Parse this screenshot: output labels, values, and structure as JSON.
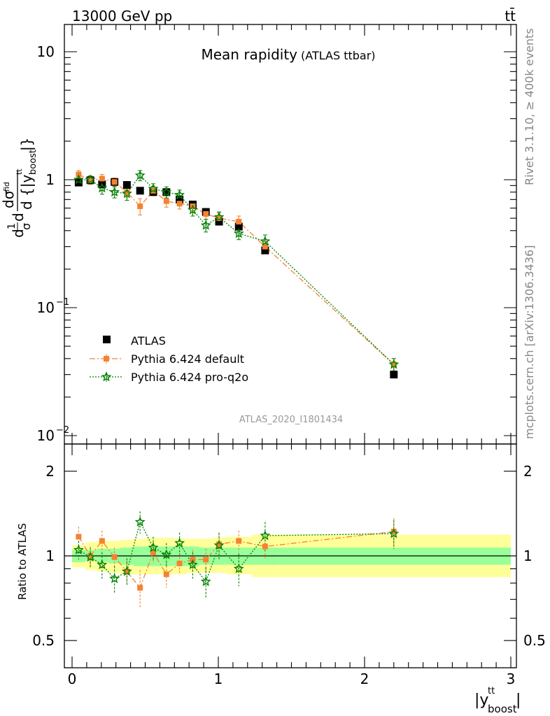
{
  "header": {
    "energy_label": "13000 GeV pp",
    "process_label": "tt̄"
  },
  "side_labels": {
    "rivet": "Rivet 3.1.10, ≥ 400k events",
    "mcplots": "mcplots.cern.ch [arXiv:1306.3436]"
  },
  "colors": {
    "atlas": "#000000",
    "pythia_default": "#f58231",
    "pythia_proq2o": "#008000",
    "band_inner": "#99ff99",
    "band_outer": "#ffff99",
    "ratio_line": "#000000"
  },
  "chart_data": [
    {
      "panel": "main",
      "type": "scatter",
      "title": "Mean rapidity",
      "subtitle": "(ATLAS ttbar)",
      "analysis_id": "ATLAS_2020_I1801434",
      "ylabel": "d 1/σ dσ^{fid} / d {|y^{tt}_{boost}|}",
      "yscale": "log",
      "ylim": [
        0.01,
        20
      ],
      "xlim": [
        -0.07,
        3.05
      ],
      "yticks": [
        {
          "value": 10,
          "base": "10",
          "exp": ""
        },
        {
          "value": 1,
          "base": "1",
          "exp": ""
        },
        {
          "value": 0.1,
          "base": "10",
          "exp": "−1"
        },
        {
          "value": 0.01,
          "base": "10",
          "exp": "−2"
        }
      ],
      "legend_placement": "lower-left",
      "x": [
        0.045,
        0.125,
        0.205,
        0.29,
        0.375,
        0.465,
        0.555,
        0.645,
        0.735,
        0.825,
        0.915,
        1.005,
        1.14,
        1.32,
        2.2
      ],
      "series": [
        {
          "name": "ATLAS",
          "marker": "square",
          "values": [
            0.95,
            0.99,
            0.92,
            0.96,
            0.91,
            0.82,
            0.8,
            0.8,
            0.7,
            0.64,
            0.56,
            0.47,
            0.43,
            0.28,
            0.03
          ],
          "yerr": [
            0.03,
            0.03,
            0.03,
            0.03,
            0.03,
            0.03,
            0.03,
            0.03,
            0.02,
            0.02,
            0.02,
            0.02,
            0.02,
            0.01,
            0.002
          ]
        },
        {
          "name": "Pythia 6.424 default",
          "marker": "square",
          "line": "dashdot",
          "values": [
            1.1,
            0.99,
            1.02,
            0.96,
            0.8,
            0.62,
            0.82,
            0.68,
            0.65,
            0.62,
            0.54,
            0.5,
            0.47,
            0.3,
            0.036
          ],
          "yerr": [
            0.08,
            0.07,
            0.08,
            0.07,
            0.07,
            0.09,
            0.07,
            0.07,
            0.06,
            0.05,
            0.05,
            0.05,
            0.05,
            0.03,
            0.004
          ]
        },
        {
          "name": "Pythia 6.424 pro-q2o",
          "marker": "star",
          "line": "dotted",
          "values": [
            1.0,
            1.0,
            0.86,
            0.8,
            0.78,
            1.08,
            0.85,
            0.8,
            0.76,
            0.58,
            0.44,
            0.51,
            0.38,
            0.33,
            0.036
          ],
          "yerr": [
            0.08,
            0.07,
            0.09,
            0.08,
            0.09,
            0.1,
            0.08,
            0.08,
            0.07,
            0.06,
            0.05,
            0.05,
            0.04,
            0.04,
            0.004
          ]
        }
      ]
    },
    {
      "panel": "ratio",
      "type": "scatter",
      "ylabel": "Ratio to ATLAS",
      "xlabel": "|y^{tt}_{boost}|",
      "yscale": "log",
      "ylim": [
        0.4,
        2.4
      ],
      "xlim": [
        -0.07,
        3.05
      ],
      "yticks": [
        {
          "value": 2,
          "label": "2"
        },
        {
          "value": 1,
          "label": "1"
        },
        {
          "value": 0.5,
          "label": "0.5"
        }
      ],
      "xticks": [
        {
          "value": 0,
          "label": "0"
        },
        {
          "value": 1,
          "label": "1"
        },
        {
          "value": 2,
          "label": "2"
        },
        {
          "value": 3,
          "label": "3"
        }
      ],
      "x": [
        0.045,
        0.125,
        0.205,
        0.29,
        0.375,
        0.465,
        0.555,
        0.645,
        0.735,
        0.825,
        0.915,
        1.005,
        1.14,
        1.32,
        2.2
      ],
      "bands": {
        "edges": [
          0,
          0.09,
          0.17,
          0.25,
          0.33,
          0.42,
          0.51,
          0.6,
          0.69,
          0.78,
          0.87,
          0.96,
          1.05,
          1.23,
          1.41,
          3.0
        ],
        "inner_low": [
          0.95,
          0.96,
          0.95,
          0.94,
          0.93,
          0.92,
          0.92,
          0.92,
          0.92,
          0.92,
          0.93,
          0.93,
          0.93,
          0.93,
          0.93
        ],
        "inner_high": [
          1.05,
          1.05,
          1.06,
          1.06,
          1.07,
          1.08,
          1.08,
          1.08,
          1.08,
          1.08,
          1.07,
          1.07,
          1.07,
          1.07,
          1.07
        ],
        "outer_low": [
          0.91,
          0.89,
          0.88,
          0.87,
          0.86,
          0.86,
          0.86,
          0.86,
          0.86,
          0.87,
          0.87,
          0.87,
          0.86,
          0.84,
          0.84
        ],
        "outer_high": [
          1.09,
          1.12,
          1.13,
          1.13,
          1.14,
          1.15,
          1.16,
          1.16,
          1.15,
          1.15,
          1.15,
          1.16,
          1.17,
          1.19,
          1.19
        ]
      },
      "series": [
        {
          "name": "Pythia 6.424 default",
          "values": [
            1.17,
            1.0,
            1.13,
            0.99,
            0.88,
            0.77,
            1.03,
            0.86,
            0.94,
            0.97,
            0.97,
            1.1,
            1.13,
            1.08,
            1.22
          ],
          "yerr": [
            0.1,
            0.08,
            0.1,
            0.08,
            0.08,
            0.12,
            0.09,
            0.09,
            0.08,
            0.08,
            0.09,
            0.1,
            0.1,
            0.1,
            0.14
          ]
        },
        {
          "name": "Pythia 6.424 pro-q2o",
          "values": [
            1.05,
            0.99,
            0.93,
            0.83,
            0.88,
            1.32,
            1.07,
            1.01,
            1.11,
            0.93,
            0.81,
            1.09,
            0.9,
            1.18,
            1.2
          ],
          "yerr": [
            0.08,
            0.08,
            0.1,
            0.09,
            0.1,
            0.12,
            0.1,
            0.1,
            0.1,
            0.1,
            0.1,
            0.12,
            0.12,
            0.14,
            0.14
          ]
        }
      ]
    }
  ]
}
